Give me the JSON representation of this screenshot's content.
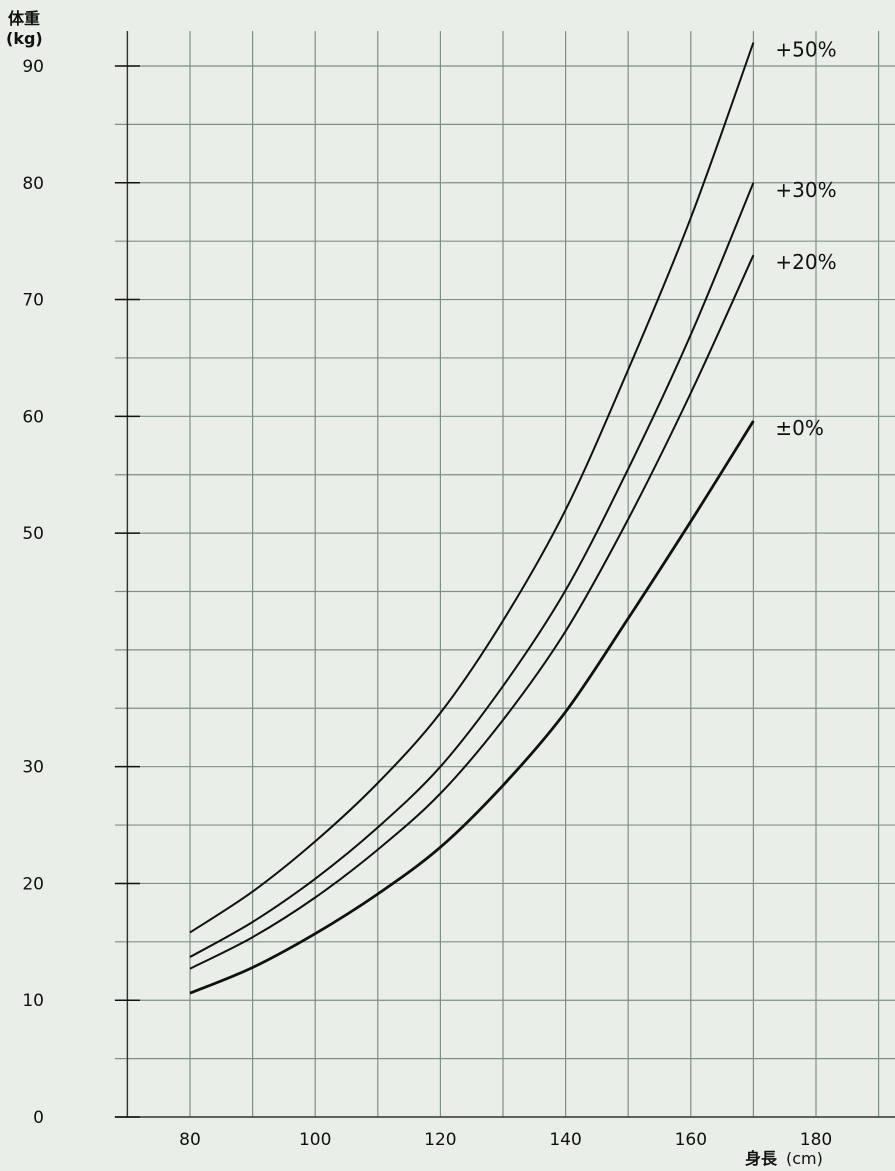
{
  "chart_data": {
    "type": "line",
    "ylabel_line1": "体重",
    "ylabel_line2": "(kg)",
    "xlabel": "身長",
    "xlabel_unit": "(cm)",
    "xlim": [
      68,
      198
    ],
    "ylim": [
      0,
      93
    ],
    "x_ticks": [
      80,
      100,
      120,
      140,
      160,
      180
    ],
    "y_ticks": [
      0,
      10,
      20,
      30,
      50,
      60,
      70,
      80,
      90
    ],
    "grid": true,
    "colors": {
      "background": "#e9efe8",
      "grid": "#7f8f86",
      "line": "#111111"
    },
    "series": [
      {
        "name": "+50%",
        "x": [
          80,
          90,
          100,
          110,
          120,
          130,
          140,
          150,
          160,
          170
        ],
        "y": [
          15.8,
          19.3,
          23.6,
          28.6,
          34.6,
          42.5,
          52.0,
          64.0,
          77.0,
          92.0
        ]
      },
      {
        "name": "+30%",
        "x": [
          80,
          90,
          100,
          110,
          120,
          130,
          140,
          150,
          160,
          170
        ],
        "y": [
          13.7,
          16.7,
          20.4,
          24.8,
          30.0,
          36.9,
          45.1,
          55.5,
          67.0,
          80.0
        ]
      },
      {
        "name": "+20%",
        "x": [
          80,
          90,
          100,
          110,
          120,
          130,
          140,
          150,
          160,
          170
        ],
        "y": [
          12.7,
          15.4,
          18.8,
          22.9,
          27.7,
          34.0,
          41.6,
          51.2,
          62.0,
          73.8
        ]
      },
      {
        "name": "±0%",
        "x": [
          80,
          90,
          100,
          110,
          120,
          130,
          140,
          150,
          160,
          170
        ],
        "y": [
          10.6,
          12.8,
          15.7,
          19.1,
          23.1,
          28.4,
          34.7,
          42.7,
          51.0,
          59.6
        ]
      }
    ]
  }
}
